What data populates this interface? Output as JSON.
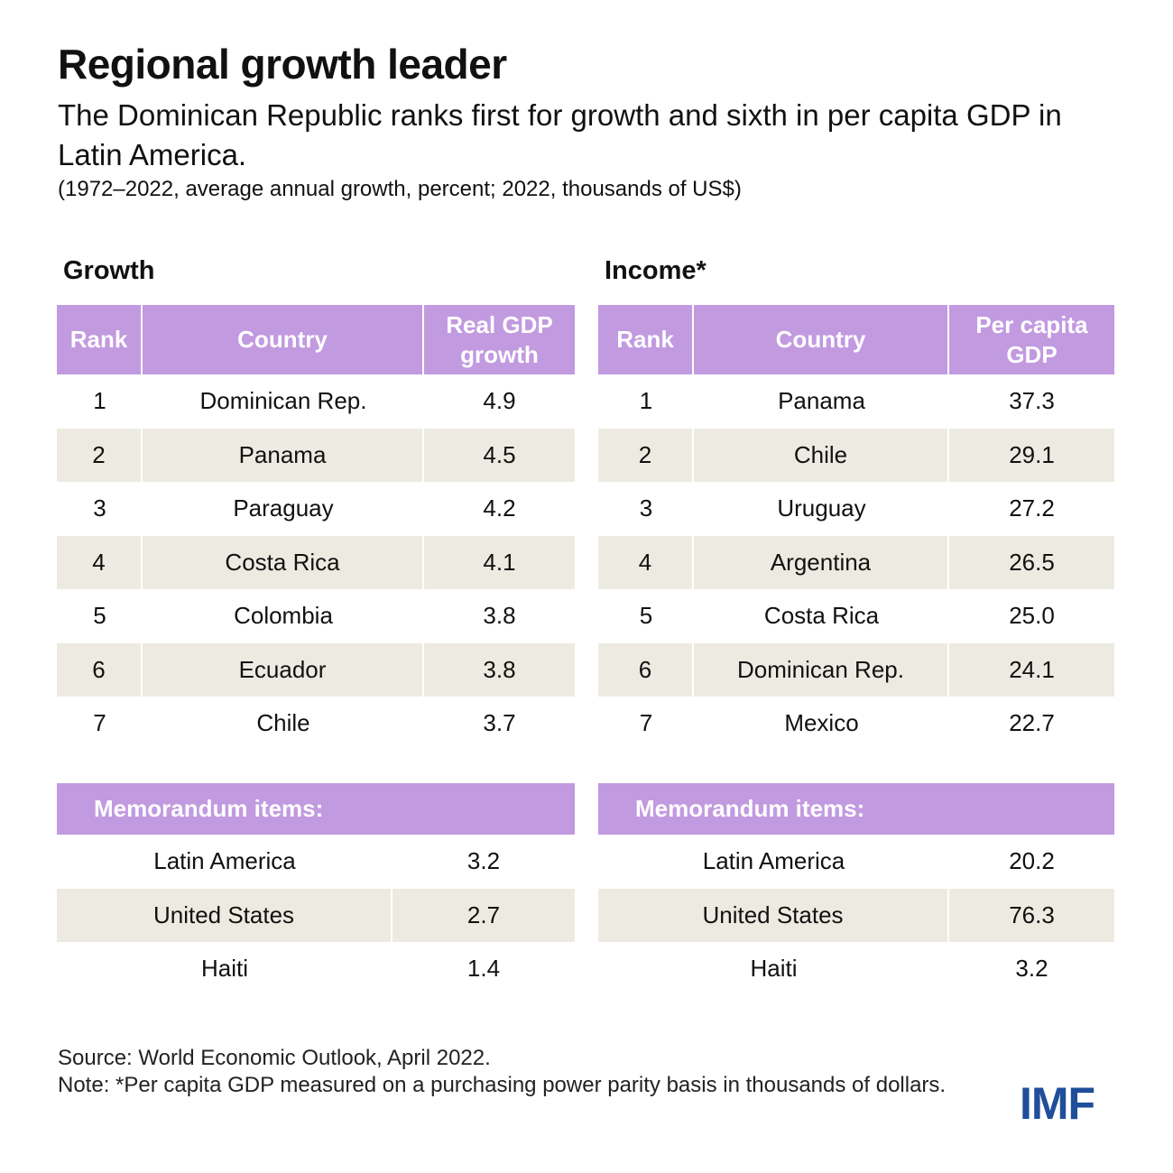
{
  "title": "Regional growth leader",
  "subtitle": "The Dominican Republic ranks first for growth and sixth in per capita GDP in Latin America.",
  "note": "(1972–2022, average annual growth, percent; 2022, thousands of US$)",
  "colors": {
    "header": "#c29ae0",
    "shade": "#edebe1",
    "logo": "#1f4e9a"
  },
  "chart_data": [
    {
      "type": "table",
      "title": "Growth",
      "columns": [
        "Rank",
        "Country",
        "Real GDP growth"
      ],
      "rows": [
        [
          "1",
          "Dominican Rep.",
          "4.9"
        ],
        [
          "2",
          "Panama",
          "4.5"
        ],
        [
          "3",
          "Paraguay",
          "4.2"
        ],
        [
          "4",
          "Costa Rica",
          "4.1"
        ],
        [
          "5",
          "Colombia",
          "3.8"
        ],
        [
          "6",
          "Ecuador",
          "3.8"
        ],
        [
          "7",
          "Chile",
          "3.7"
        ]
      ],
      "memo_label": "Memorandum items:",
      "memo_rows": [
        [
          "Latin America",
          "3.2"
        ],
        [
          "United States",
          "2.7"
        ],
        [
          "Haiti",
          "1.4"
        ]
      ]
    },
    {
      "type": "table",
      "title": "Income*",
      "columns": [
        "Rank",
        "Country",
        "Per capita GDP"
      ],
      "rows": [
        [
          "1",
          "Panama",
          "37.3"
        ],
        [
          "2",
          "Chile",
          "29.1"
        ],
        [
          "3",
          "Uruguay",
          "27.2"
        ],
        [
          "4",
          "Argentina",
          "26.5"
        ],
        [
          "5",
          "Costa Rica",
          "25.0"
        ],
        [
          "6",
          "Dominican Rep.",
          "24.1"
        ],
        [
          "7",
          "Mexico",
          "22.7"
        ]
      ],
      "memo_label": "Memorandum items:",
      "memo_rows": [
        [
          "Latin America",
          "20.2"
        ],
        [
          "United States",
          "76.3"
        ],
        [
          "Haiti",
          "3.2"
        ]
      ]
    }
  ],
  "source": "Source: World Economic Outlook, April 2022.",
  "footnote": "Note: *Per capita GDP measured on a purchasing power parity basis in thousands of dollars.",
  "logo": "IMF"
}
